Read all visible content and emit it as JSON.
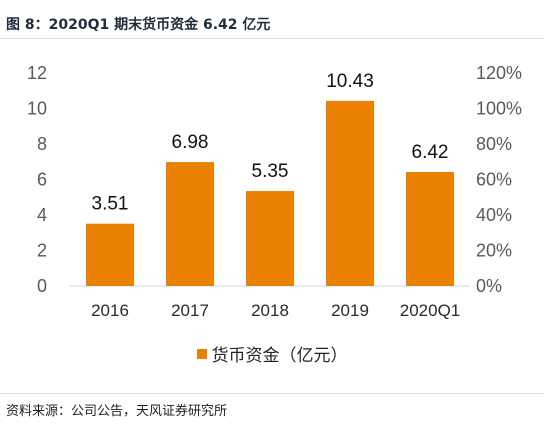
{
  "figure_title": "图 8：2020Q1 期末货币资金 6.42 亿元",
  "source_note": "资料来源：公司公告，天风证券研究所",
  "colors": {
    "bar": "#EB8100",
    "axis": "#d9d9d9"
  },
  "chart_data": {
    "type": "bar",
    "categories": [
      "2016",
      "2017",
      "2018",
      "2019",
      "2020Q1"
    ],
    "series": [
      {
        "name": "货币资金（亿元）",
        "values": [
          3.51,
          6.98,
          5.35,
          10.43,
          6.42
        ]
      }
    ],
    "data_labels": [
      "3.51",
      "6.98",
      "5.35",
      "10.43",
      "6.42"
    ],
    "ylim": [
      0,
      12
    ],
    "yticks": [
      "0",
      "2",
      "4",
      "6",
      "8",
      "10",
      "12"
    ],
    "y2ticks": [
      "0%",
      "20%",
      "40%",
      "60%",
      "80%",
      "100%",
      "120%"
    ],
    "legend_position": "bottom",
    "grid": false
  }
}
